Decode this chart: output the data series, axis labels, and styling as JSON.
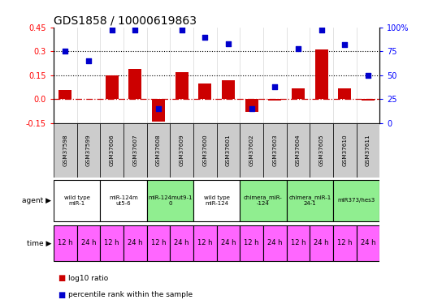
{
  "title": "GDS1858 / 10000619863",
  "samples": [
    "GSM37598",
    "GSM37599",
    "GSM37606",
    "GSM37607",
    "GSM37608",
    "GSM37609",
    "GSM37600",
    "GSM37601",
    "GSM37602",
    "GSM37603",
    "GSM37604",
    "GSM37605",
    "GSM37610",
    "GSM37611"
  ],
  "log10_ratio": [
    0.06,
    0.0,
    0.15,
    0.19,
    -0.14,
    0.17,
    0.1,
    0.12,
    -0.08,
    -0.01,
    0.07,
    0.31,
    0.07,
    -0.01
  ],
  "percentile": [
    75,
    65,
    97,
    97,
    15,
    97,
    90,
    83,
    15,
    38,
    78,
    97,
    82,
    50
  ],
  "ylim_left": [
    -0.15,
    0.45
  ],
  "ylim_right": [
    0,
    100
  ],
  "yticks_left": [
    -0.15,
    0.0,
    0.15,
    0.3,
    0.45
  ],
  "yticks_right": [
    0,
    25,
    50,
    75,
    100
  ],
  "dotted_lines": [
    0.15,
    0.3
  ],
  "agent_groups": [
    {
      "label": "wild type\nmiR-1",
      "cols": [
        0,
        1
      ],
      "color": "#ffffff"
    },
    {
      "label": "miR-124m\nut5-6",
      "cols": [
        2,
        3
      ],
      "color": "#ffffff"
    },
    {
      "label": "miR-124mut9-1\n0",
      "cols": [
        4,
        5
      ],
      "color": "#90ee90"
    },
    {
      "label": "wild type\nmiR-124",
      "cols": [
        6,
        7
      ],
      "color": "#ffffff"
    },
    {
      "label": "chimera_miR-\n-124",
      "cols": [
        8,
        9
      ],
      "color": "#90ee90"
    },
    {
      "label": "chimera_miR-1\n24-1",
      "cols": [
        10,
        11
      ],
      "color": "#90ee90"
    },
    {
      "label": "miR373/hes3",
      "cols": [
        12,
        13
      ],
      "color": "#90ee90"
    }
  ],
  "time_labels": [
    "12 h",
    "24 h",
    "12 h",
    "24 h",
    "12 h",
    "24 h",
    "12 h",
    "24 h",
    "12 h",
    "24 h",
    "12 h",
    "24 h",
    "12 h",
    "24 h"
  ],
  "time_color": "#ff66ff",
  "bar_color": "#cc0000",
  "dot_color": "#0000cc",
  "zero_line_color": "#cc0000",
  "bg_color": "#ffffff",
  "gsm_bg_color": "#cccccc",
  "legend_bar": "log10 ratio",
  "legend_dot": "percentile rank within the sample"
}
